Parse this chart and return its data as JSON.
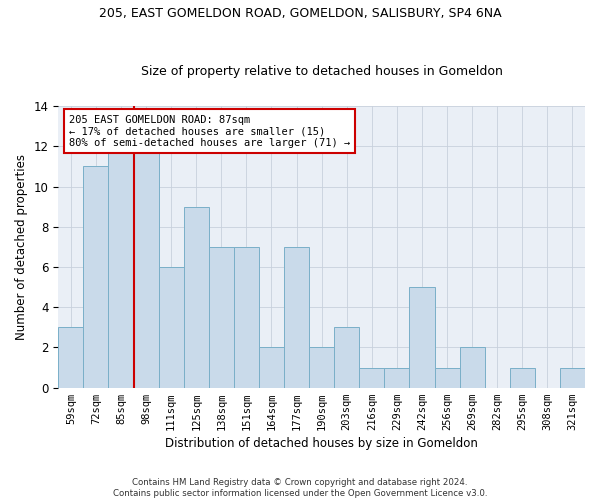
{
  "title": "205, EAST GOMELDON ROAD, GOMELDON, SALISBURY, SP4 6NA",
  "subtitle": "Size of property relative to detached houses in Gomeldon",
  "xlabel": "Distribution of detached houses by size in Gomeldon",
  "ylabel": "Number of detached properties",
  "categories": [
    "59sqm",
    "72sqm",
    "85sqm",
    "98sqm",
    "111sqm",
    "125sqm",
    "138sqm",
    "151sqm",
    "164sqm",
    "177sqm",
    "190sqm",
    "203sqm",
    "216sqm",
    "229sqm",
    "242sqm",
    "256sqm",
    "269sqm",
    "282sqm",
    "295sqm",
    "308sqm",
    "321sqm"
  ],
  "values": [
    3,
    11,
    12,
    12,
    6,
    9,
    7,
    7,
    2,
    7,
    2,
    3,
    1,
    1,
    5,
    1,
    2,
    0,
    1,
    0,
    1
  ],
  "bar_color": "#c9daea",
  "bar_edge_color": "#7aafc8",
  "ref_line_x": 2.5,
  "ref_line_color": "#cc0000",
  "annotation_text": "205 EAST GOMELDON ROAD: 87sqm\n← 17% of detached houses are smaller (15)\n80% of semi-detached houses are larger (71) →",
  "annotation_box_facecolor": "#ffffff",
  "annotation_box_edgecolor": "#cc0000",
  "ylim": [
    0,
    14
  ],
  "yticks": [
    0,
    2,
    4,
    6,
    8,
    10,
    12,
    14
  ],
  "grid_color": "#c8d0dc",
  "bg_color": "#eaeff6",
  "title_fontsize": 9,
  "subtitle_fontsize": 9,
  "footer": "Contains HM Land Registry data © Crown copyright and database right 2024.\nContains public sector information licensed under the Open Government Licence v3.0."
}
